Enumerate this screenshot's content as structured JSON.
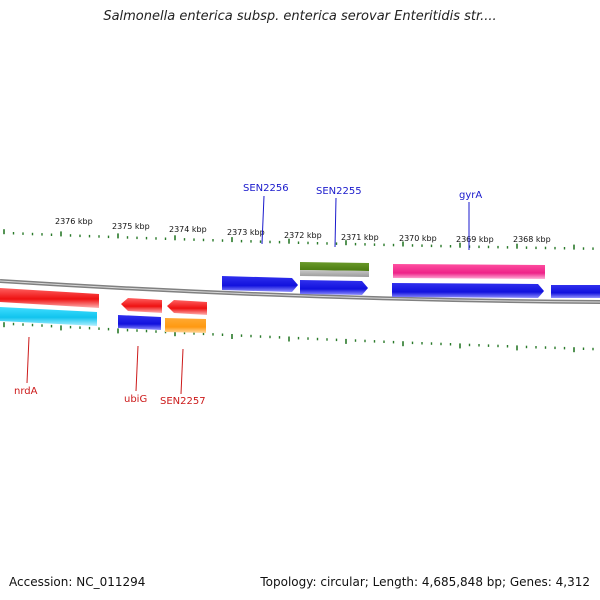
{
  "title": "Salmonella enterica subsp. enterica serovar Enteritidis str....",
  "footer": {
    "accession": "Accession: NC_011294",
    "summary": "Topology: circular; Length: 4,685,848 bp; Genes: 4,312"
  },
  "position_labels": [
    "2376 kbp",
    "2375 kbp",
    "2374 kbp",
    "2373 kbp",
    "2372 kbp",
    "2371 kbp",
    "2370 kbp",
    "2369 kbp",
    "2368 kbp"
  ],
  "gene_labels": {
    "top": [
      "SEN2256",
      "SEN2255",
      "gyrA"
    ],
    "bottom": [
      "nrdA",
      "ubiG",
      "SEN2257"
    ]
  },
  "colors": {
    "forward_label": "#1a1acc",
    "reverse_label": "#cc1a1a",
    "tick": "#2a7a2a",
    "backbone": "#808080",
    "red": "#ee1111",
    "cyan": "#11c4ee",
    "blue": "#1111dd",
    "orange": "#ff9911",
    "green": "#5a8a1a",
    "gray": "#aaaaaa",
    "pink": "#ee2288"
  }
}
